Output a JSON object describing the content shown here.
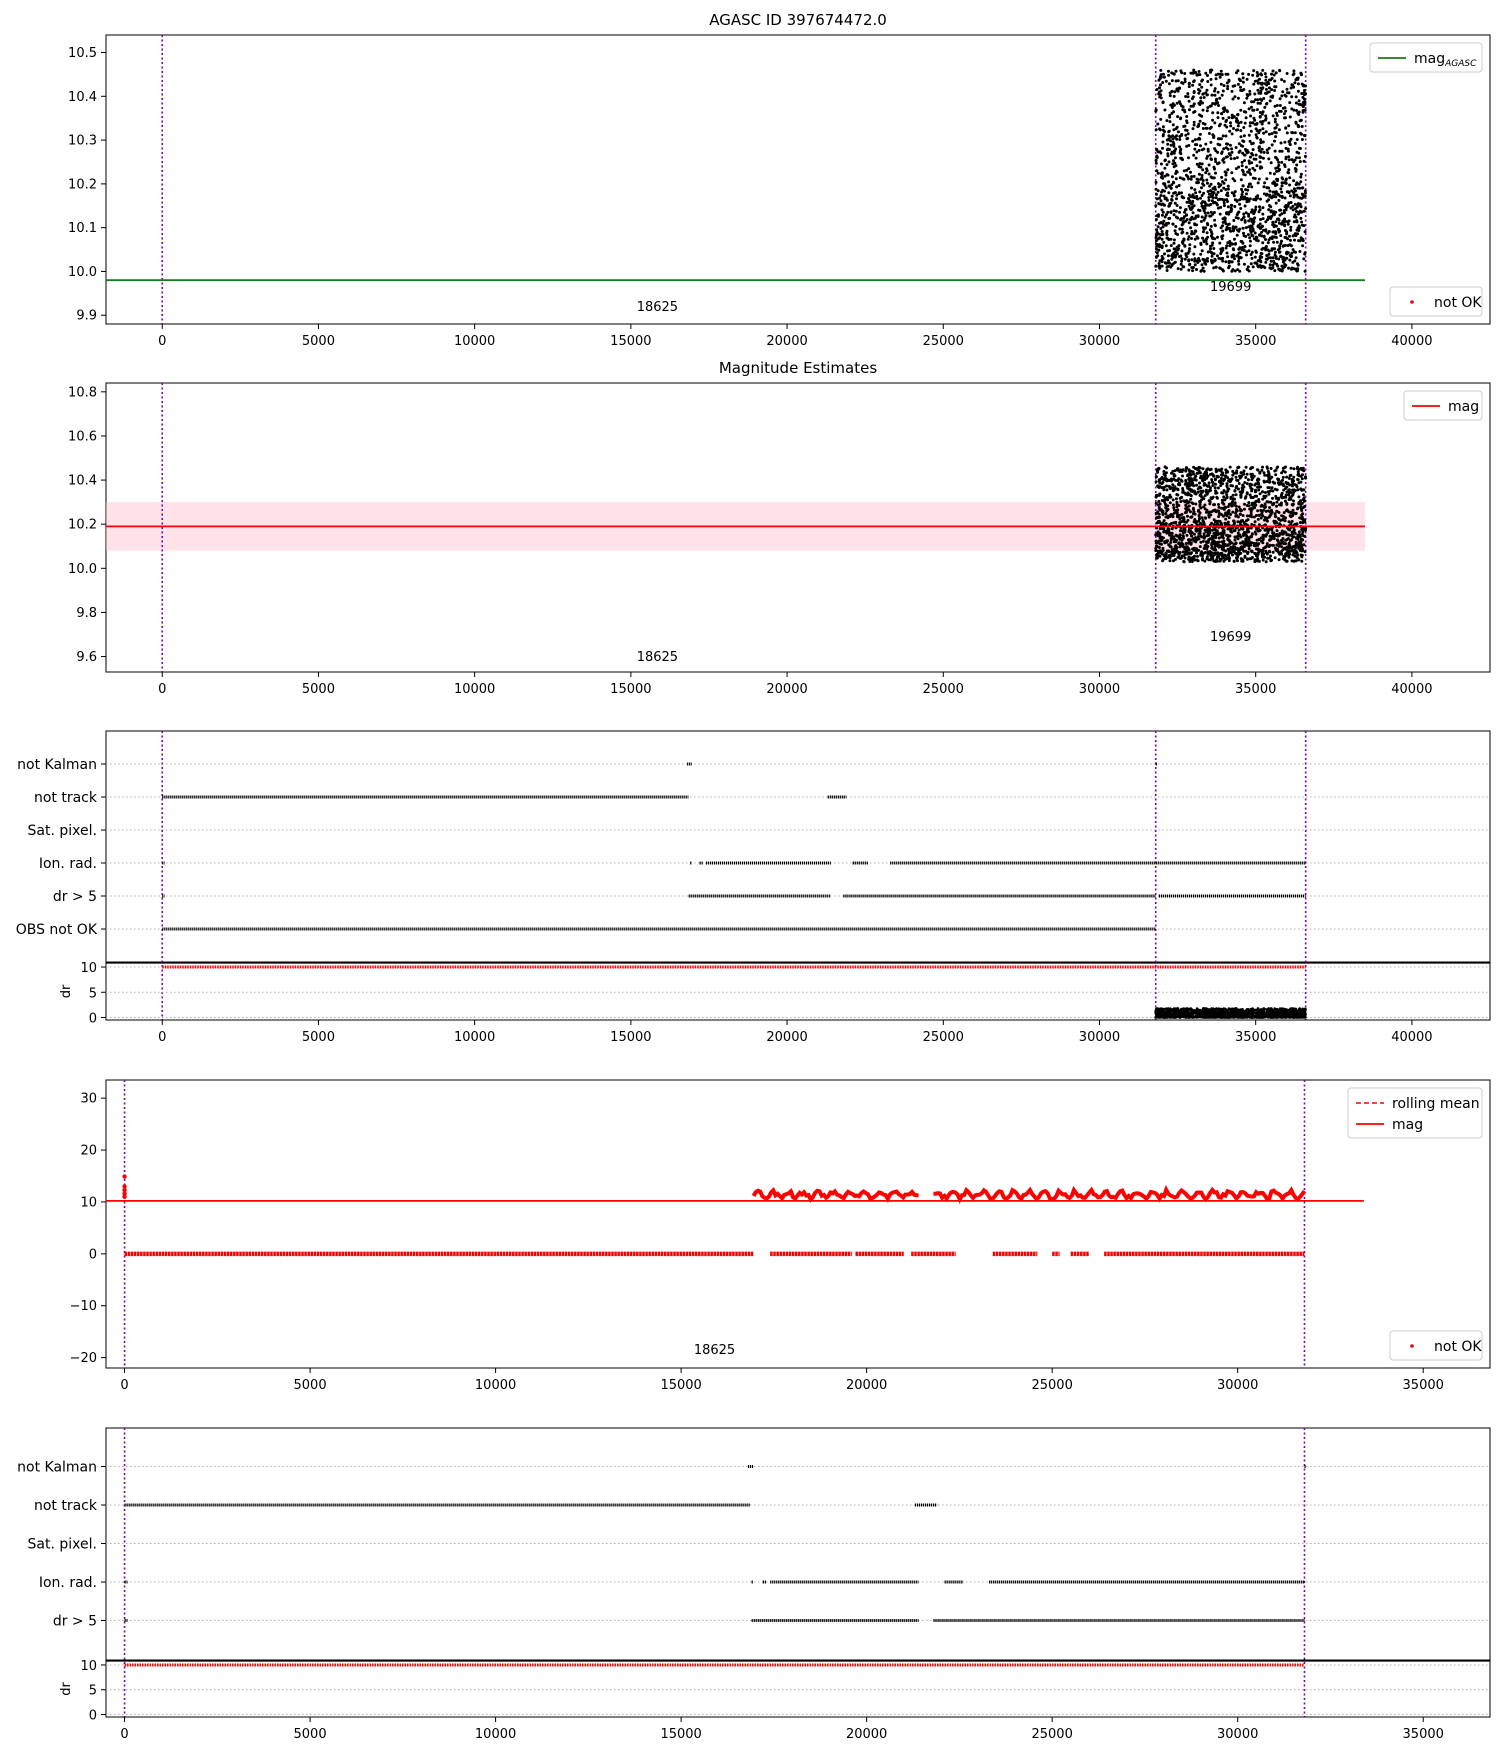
{
  "figure": {
    "title": "AGASC ID 397674472.0"
  },
  "chart_data": [
    {
      "type": "scatter",
      "title": "AGASC ID 397674472.0",
      "xlim": [
        -1800,
        42500
      ],
      "ylim": [
        9.88,
        10.54
      ],
      "xticks": [
        0,
        5000,
        10000,
        15000,
        20000,
        25000,
        30000,
        35000,
        40000
      ],
      "yticks": [
        9.9,
        10.0,
        10.1,
        10.2,
        10.3,
        10.4,
        10.5
      ],
      "ytick_labels": [
        "9.9",
        "10.0",
        "10.1",
        "10.2",
        "10.3",
        "10.4",
        "10.5"
      ],
      "vlines": [
        0,
        31800,
        36600
      ],
      "obs_labels": [
        {
          "text": "18625",
          "x": 15850,
          "y": 9.91
        },
        {
          "text": "19699",
          "x": 34200,
          "y": 9.955
        }
      ],
      "hline": {
        "y": 9.98,
        "x": [
          -1800,
          38500
        ],
        "color": "#1a7a1a"
      },
      "clusters": [
        {
          "x": [
            31800,
            36600
          ],
          "y_low": [
            10.0,
            10.18
          ],
          "y_high": [
            10.18,
            10.46
          ],
          "n": 1900,
          "color": "#000000"
        }
      ],
      "legend": [
        {
          "label": "mag",
          "subscript": "AGASC",
          "kind": "line",
          "color": "#1a7a1a",
          "position": "upper right"
        }
      ],
      "legend2": [
        {
          "label": "not OK",
          "kind": "point",
          "color": "#ff0000",
          "position": "lower right"
        }
      ]
    },
    {
      "type": "scatter",
      "title": "Magnitude Estimates",
      "xlim": [
        -1800,
        42500
      ],
      "ylim": [
        9.53,
        10.84
      ],
      "xticks": [
        0,
        5000,
        10000,
        15000,
        20000,
        25000,
        30000,
        35000,
        40000
      ],
      "yticks": [
        9.6,
        9.8,
        10.0,
        10.2,
        10.4,
        10.6,
        10.8
      ],
      "ytick_labels": [
        "9.6",
        "9.8",
        "10.0",
        "10.2",
        "10.4",
        "10.6",
        "10.8"
      ],
      "vlines": [
        0,
        31800,
        36600
      ],
      "obs_labels": [
        {
          "text": "18625",
          "x": 15850,
          "y": 9.58
        },
        {
          "text": "19699",
          "x": 34200,
          "y": 9.67
        }
      ],
      "hline": {
        "y": 10.19,
        "x": [
          -1800,
          38500
        ],
        "color": "#ff0000"
      },
      "band": {
        "y": [
          10.08,
          10.3
        ],
        "x": [
          -1800,
          38500
        ],
        "color": "#ffc0cb"
      },
      "clusters": [
        {
          "x": [
            31800,
            36600
          ],
          "y_low": [
            10.03,
            10.2
          ],
          "y_high": [
            10.2,
            10.46
          ],
          "n": 1900,
          "color": "#000000"
        }
      ],
      "legend": [
        {
          "label": "mag",
          "kind": "line",
          "color": "#ff0000",
          "position": "upper right"
        }
      ]
    },
    {
      "type": "scatter",
      "title": "",
      "xlim": [
        -1800,
        42500
      ],
      "xticks": [
        0,
        5000,
        10000,
        15000,
        20000,
        25000,
        30000,
        35000,
        40000
      ],
      "categories": [
        "not Kalman",
        "not track",
        "Sat. pixel.",
        "Ion. rad.",
        "dr > 5",
        "OBS not OK"
      ],
      "vlines": [
        0,
        31800,
        36600
      ],
      "flags": [
        {
          "category": "not Kalman",
          "segments": [
            [
              16800,
              16950
            ],
            [
              31800,
              31830
            ]
          ]
        },
        {
          "category": "not track",
          "segments": [
            [
              0,
              16850
            ],
            [
              21300,
              21900
            ]
          ]
        },
        {
          "category": "Sat. pixel.",
          "segments": []
        },
        {
          "category": "Ion. rad.",
          "segments": [
            [
              0,
              80
            ],
            [
              16900,
              16950
            ],
            [
              17200,
              17300
            ],
            [
              17400,
              21400
            ],
            [
              22100,
              22600
            ],
            [
              23300,
              36600
            ]
          ]
        },
        {
          "category": "dr > 5",
          "segments": [
            [
              0,
              80
            ],
            [
              16850,
              21400
            ],
            [
              21800,
              31800
            ],
            [
              31900,
              36600
            ]
          ]
        },
        {
          "category": "OBS not OK",
          "segments": [
            [
              0,
              31800
            ]
          ]
        }
      ],
      "dr": {
        "ylabel": "dr",
        "ylim": [
          -0.5,
          10.8
        ],
        "yticks": [
          0,
          5,
          10
        ],
        "ytick_labels": [
          "0",
          "5",
          "10"
        ],
        "red_line": {
          "y": 10,
          "x": [
            0,
            36600
          ]
        },
        "noise": {
          "x": [
            31800,
            36600
          ],
          "y": [
            0.0,
            1.8
          ],
          "n": 1500
        }
      }
    },
    {
      "type": "scatter",
      "title": "",
      "xlim": [
        -500,
        36800
      ],
      "ylim": [
        -22,
        33.5
      ],
      "xticks": [
        0,
        5000,
        10000,
        15000,
        20000,
        25000,
        30000,
        35000
      ],
      "yticks": [
        -20,
        -10,
        0,
        10,
        20,
        30
      ],
      "ytick_labels": [
        "−20",
        "−10",
        "0",
        "10",
        "20",
        "30"
      ],
      "vlines": [
        0,
        31800
      ],
      "obs_labels": [
        {
          "text": "18625",
          "x": 15900,
          "y": -19.3
        }
      ],
      "hline": {
        "y": 10.2,
        "x": [
          -500,
          33400
        ],
        "color": "#ff0000"
      },
      "zero_points": [
        [
          0,
          16950
        ],
        [
          17400,
          19600
        ],
        [
          19700,
          21000
        ],
        [
          21200,
          22400
        ],
        [
          23400,
          24600
        ],
        [
          25000,
          25200
        ],
        [
          25500,
          26000
        ],
        [
          26400,
          31800
        ]
      ],
      "bumps": [
        [
          16950,
          21400
        ],
        [
          21800,
          31800
        ]
      ],
      "start_points": [
        {
          "x": 0,
          "y": 11.0
        },
        {
          "x": 0,
          "y": 11.6
        },
        {
          "x": 0,
          "y": 12.3
        },
        {
          "x": 0,
          "y": 13.0
        },
        {
          "x": 0,
          "y": 14.9
        }
      ],
      "legend": [
        {
          "label": "rolling mean",
          "kind": "dashed",
          "color": "#ff0000",
          "position": "upper right"
        },
        {
          "label": "mag",
          "kind": "line",
          "color": "#ff0000",
          "position": "upper right"
        }
      ],
      "legend2": [
        {
          "label": "not OK",
          "kind": "point",
          "color": "#ff0000",
          "position": "lower right"
        }
      ]
    },
    {
      "type": "scatter",
      "title": "",
      "xlim": [
        -500,
        36800
      ],
      "xticks": [
        0,
        5000,
        10000,
        15000,
        20000,
        25000,
        30000,
        35000
      ],
      "categories": [
        "not Kalman",
        "not track",
        "Sat. pixel.",
        "Ion. rad.",
        "dr > 5"
      ],
      "vlines": [
        0,
        31800
      ],
      "flags": [
        {
          "category": "not Kalman",
          "segments": [
            [
              16800,
              16950
            ],
            [
              31800,
              31830
            ]
          ]
        },
        {
          "category": "not track",
          "segments": [
            [
              0,
              16850
            ],
            [
              21300,
              21900
            ]
          ]
        },
        {
          "category": "Sat. pixel.",
          "segments": []
        },
        {
          "category": "Ion. rad.",
          "segments": [
            [
              0,
              80
            ],
            [
              16900,
              16950
            ],
            [
              17200,
              17300
            ],
            [
              17400,
              21400
            ],
            [
              22100,
              22600
            ],
            [
              23300,
              31800
            ]
          ]
        },
        {
          "category": "dr > 5",
          "segments": [
            [
              0,
              80
            ],
            [
              16900,
              21400
            ],
            [
              21800,
              31800
            ]
          ]
        }
      ],
      "dr": {
        "ylabel": "dr",
        "ylim": [
          -0.5,
          10.8
        ],
        "yticks": [
          0,
          5,
          10
        ],
        "ytick_labels": [
          "0",
          "5",
          "10"
        ],
        "red_line": {
          "y": 10,
          "x": [
            0,
            31800
          ]
        },
        "noise": null
      }
    }
  ]
}
